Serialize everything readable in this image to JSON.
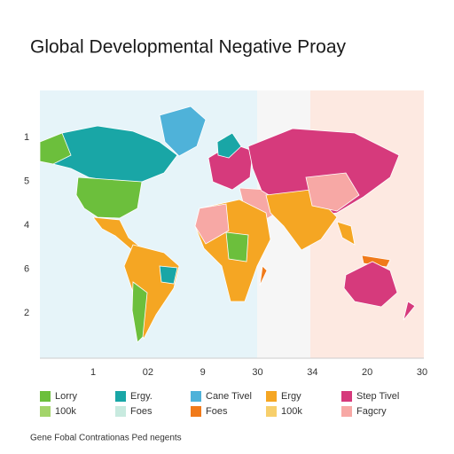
{
  "title": "Global Developmental Negative Proay",
  "y_labels": [
    "1",
    "5",
    "4",
    "6",
    "2"
  ],
  "x_labels": [
    "1",
    "02",
    "9",
    "30",
    "34",
    "20",
    "30"
  ],
  "legend": [
    {
      "label": "Lorry",
      "color": "#6cbf3c"
    },
    {
      "label": "Ergy.",
      "color": "#19a6a6"
    },
    {
      "label": "Cane Tivel",
      "color": "#4fb2d9"
    },
    {
      "label": "Ergy",
      "color": "#f5a623"
    },
    {
      "label": "Step Tivel",
      "color": "#d63a7c"
    },
    {
      "label": "100k",
      "color": "#a3d46a"
    },
    {
      "label": "Foes",
      "color": "#c8eadf"
    },
    {
      "label": "Foes",
      "color": "#f07a1a"
    },
    {
      "label": "100k",
      "color": "#f7cf6b"
    },
    {
      "label": "Fagcry",
      "color": "#f7a8a5"
    }
  ],
  "footer": "Gene Fobal Contrationas Ped negents"
}
